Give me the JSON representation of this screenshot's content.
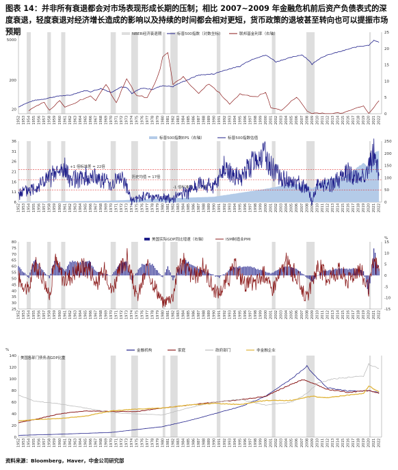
{
  "figure": {
    "title": "图表 14：并非所有衰退都会对市场表现形成长期的压制；相比 2007~2009 年金融危机前后资产负债表式的深度衰退，轻度衰退对经济增长造成的影响以及持续的时间都会相对更短，货币政策的退坡甚至转向也可以提振市场预期",
    "source": "资料来源：Bloomberg，Haver，中金公司研究部"
  },
  "colors": {
    "navy": "#1f1f8a",
    "darkred": "#8b1a1a",
    "gray": "#bdbdbd",
    "gold": "#e0b43a",
    "lightblue": "#b4cbe8",
    "recession": "#dedede",
    "redline": "#e03030"
  },
  "chart_data": [
    {
      "type": "line",
      "id": "p1",
      "legend": [
        "NBER经济衰退期",
        "标普500指数（对数坐标）",
        "联邦基金利率（右轴）"
      ],
      "y_ticks": [
        "5000",
        "200",
        "20"
      ],
      "y2_ticks": [
        "25",
        "20",
        "15",
        "10",
        "5",
        "0"
      ],
      "x_ticks": [
        "1952",
        "1953",
        "1954",
        "1955",
        "1956",
        "1957",
        "1958",
        "1959",
        "1960",
        "1961",
        "1962",
        "1963",
        "1964",
        "1965",
        "1966",
        "1967",
        "1968",
        "1969",
        "1970",
        "1971",
        "1972",
        "1973",
        "1974",
        "1975",
        "1976",
        "1977",
        "1978",
        "1979",
        "1980",
        "1981",
        "1982",
        "1983",
        "1984",
        "1985",
        "1986",
        "1987",
        "1988",
        "1989",
        "1990",
        "1991",
        "1992",
        "1993",
        "1994",
        "1995",
        "1996",
        "1997",
        "1998",
        "1999",
        "2000",
        "2001",
        "2002",
        "2003",
        "2004",
        "2005",
        "2006",
        "2007",
        "2008",
        "2009",
        "2010",
        "2011",
        "2012",
        "2013",
        "2014",
        "2015",
        "2016",
        "2017",
        "2018",
        "2019",
        "2020",
        "2021",
        "2022"
      ],
      "recessions": [
        [
          1953.6,
          1954.4
        ],
        [
          1957.6,
          1958.3
        ],
        [
          1960.3,
          1961.1
        ],
        [
          1969.9,
          1970.9
        ],
        [
          1973.9,
          1975.2
        ],
        [
          1980.0,
          1980.5
        ],
        [
          1981.5,
          1982.9
        ],
        [
          1990.5,
          1991.2
        ],
        [
          2001.2,
          2001.9
        ],
        [
          2007.9,
          2009.5
        ],
        [
          2020.1,
          2020.4
        ]
      ],
      "series": [
        {
          "name": "标普500指数（对数坐标）",
          "x": [
            1952,
            1955,
            1957,
            1960,
            1962,
            1965,
            1966,
            1968,
            1970,
            1972,
            1973,
            1974,
            1976,
            1978,
            1980,
            1982,
            1985,
            1987,
            1990,
            1995,
            1998,
            2000,
            2002,
            2005,
            2007,
            2009,
            2011,
            2015,
            2018,
            2020,
            2021,
            2022
          ],
          "y": [
            24,
            40,
            45,
            58,
            60,
            88,
            80,
            103,
            75,
            118,
            110,
            68,
            107,
            96,
            130,
            120,
            210,
            300,
            330,
            600,
            1150,
            1450,
            850,
            1220,
            1500,
            700,
            1260,
            2050,
            2900,
            3200,
            4700,
            4000
          ]
        },
        {
          "name": "联邦基金利率（右轴）",
          "x": [
            1954,
            1955,
            1957,
            1958,
            1960,
            1961,
            1966,
            1967,
            1969,
            1970,
            1971,
            1973,
            1975,
            1977,
            1979,
            1980,
            1981,
            1982,
            1984,
            1987,
            1989,
            1990,
            1993,
            1995,
            1998,
            2000,
            2001,
            2003,
            2006,
            2008,
            2009,
            2015,
            2019,
            2020,
            2022
          ],
          "y": [
            1,
            2,
            3.5,
            1,
            4,
            2,
            5.5,
            4,
            9,
            6,
            3.5,
            10.5,
            5.5,
            5,
            11,
            17,
            19,
            9,
            11,
            6.5,
            9.5,
            8,
            3,
            6,
            5,
            6.5,
            2,
            1,
            5.25,
            1,
            0.1,
            0.25,
            2.4,
            0.1,
            4
          ]
        }
      ]
    },
    {
      "type": "line",
      "id": "p2",
      "legend": [
        "标普500指数EPS（右轴）",
        "标普500指数估值"
      ],
      "y_ticks": [
        "36",
        "31",
        "26",
        "21",
        "16",
        "11",
        "6"
      ],
      "y2_ticks": [
        "250",
        "200",
        "150",
        "100",
        "50",
        "0"
      ],
      "ref_lines": [
        {
          "label": "+1 倍标准差 = 22倍",
          "value": 22
        },
        {
          "label": "历史均值 = 17倍",
          "value": 17
        },
        {
          "label": "-1 倍标准差 = 12倍",
          "value": 12
        }
      ],
      "series": [
        {
          "name": "标普500指数估值",
          "x": [
            1952,
            1955,
            1958,
            1961,
            1962,
            1965,
            1968,
            1970,
            1972,
            1974,
            1977,
            1980,
            1982,
            1985,
            1987,
            1990,
            1992,
            1995,
            1998,
            2000,
            2002,
            2005,
            2008,
            2009,
            2010,
            2013,
            2016,
            2018,
            2020,
            2021,
            2022
          ],
          "y": [
            10,
            13,
            18,
            22,
            17,
            18,
            18,
            15,
            19,
            7,
            9,
            8,
            8,
            11,
            15,
            14,
            23,
            17,
            28,
            29,
            20,
            16,
            13,
            6,
            14,
            15,
            21,
            17,
            22,
            31,
            19
          ]
        },
        {
          "name": "标普500指数EPS（右轴）",
          "x": [
            1952,
            1960,
            1970,
            1980,
            1990,
            2000,
            2005,
            2008,
            2009,
            2012,
            2015,
            2019,
            2020,
            2021,
            2022
          ],
          "y": [
            2,
            3,
            6,
            15,
            22,
            54,
            75,
            70,
            55,
            96,
            100,
            160,
            140,
            200,
            210
          ]
        }
      ]
    },
    {
      "type": "bar",
      "id": "p3",
      "legend": [
        "美国实际GDP同比增速（右轴）",
        "ISM制造业PMI"
      ],
      "y_ticks": [
        "80",
        "75",
        "70",
        "65",
        "60",
        "55",
        "50",
        "45",
        "40",
        "35",
        "30",
        "25"
      ],
      "y2_ticks": [
        "15",
        "10",
        "5",
        "0",
        "-5",
        "-10",
        "-15"
      ],
      "y2_label": "%",
      "series": [
        {
          "name": "ISM制造业PMI",
          "x": [
            1952,
            1954,
            1955,
            1957,
            1958,
            1959,
            1961,
            1964,
            1966,
            1967,
            1969,
            1970,
            1972,
            1973,
            1975,
            1977,
            1980,
            1982,
            1983,
            1984,
            1986,
            1988,
            1990,
            1991,
            1994,
            1996,
            1998,
            2000,
            2001,
            2004,
            2006,
            2008,
            2010,
            2012,
            2014,
            2016,
            2018,
            2020,
            2021,
            2022
          ],
          "y": [
            50,
            40,
            62,
            50,
            34,
            65,
            48,
            60,
            58,
            45,
            58,
            40,
            58,
            67,
            34,
            58,
            30,
            36,
            60,
            63,
            50,
            60,
            40,
            38,
            59,
            46,
            46,
            55,
            40,
            62,
            52,
            33,
            60,
            51,
            57,
            48,
            60,
            41,
            64,
            56
          ]
        },
        {
          "name": "美国实际GDP同比增速（右轴）",
          "x": [
            1952,
            1954,
            1955,
            1958,
            1959,
            1961,
            1962,
            1966,
            1967,
            1970,
            1972,
            1973,
            1974,
            1976,
            1978,
            1980,
            1981,
            1982,
            1984,
            1987,
            1991,
            1994,
            1997,
            2001,
            2004,
            2006,
            2009,
            2011,
            2015,
            2018,
            2019,
            2020,
            2021,
            2022
          ],
          "y": [
            4,
            -1,
            7,
            -1,
            7,
            2,
            6,
            6,
            2,
            0,
            6,
            6,
            -2,
            5,
            5,
            -1,
            4,
            -2,
            7,
            3,
            -1,
            4,
            4,
            1,
            4,
            3,
            -3,
            2,
            3,
            3,
            2,
            -9,
            12,
            3
          ]
        }
      ]
    },
    {
      "type": "line",
      "id": "p4",
      "title": "美国各部门债务占GDP比重",
      "legend": [
        "金融机构",
        "家庭",
        "政府部门",
        "非金融企业"
      ],
      "y_ticks": [
        "140",
        "120",
        "100",
        "80",
        "60",
        "40",
        "20",
        "0"
      ],
      "y_label": "%",
      "series": [
        {
          "name": "金融机构",
          "x": [
            1952,
            1960,
            1970,
            1980,
            1985,
            1990,
            1995,
            2000,
            2005,
            2008,
            2009,
            2012,
            2016,
            2020,
            2022
          ],
          "y": [
            3,
            5,
            8,
            18,
            28,
            40,
            52,
            70,
            100,
            122,
            110,
            85,
            79,
            80,
            76
          ]
        },
        {
          "name": "家庭",
          "x": [
            1952,
            1955,
            1960,
            1965,
            1970,
            1975,
            1980,
            1985,
            1990,
            1995,
            2000,
            2003,
            2007,
            2008,
            2012,
            2016,
            2020,
            2022
          ],
          "y": [
            25,
            30,
            40,
            45,
            44,
            44,
            50,
            55,
            60,
            64,
            70,
            83,
            98,
            97,
            82,
            77,
            80,
            75
          ]
        },
        {
          "name": "政府部门",
          "x": [
            1952,
            1955,
            1960,
            1965,
            1970,
            1975,
            1980,
            1985,
            1990,
            1995,
            2000,
            2005,
            2008,
            2010,
            2013,
            2019,
            2020,
            2022
          ],
          "y": [
            72,
            62,
            57,
            50,
            42,
            40,
            38,
            50,
            60,
            65,
            55,
            60,
            75,
            92,
            100,
            105,
            125,
            118
          ]
        },
        {
          "name": "非金融企业",
          "x": [
            1952,
            1955,
            1960,
            1965,
            1970,
            1975,
            1980,
            1985,
            1990,
            1995,
            2000,
            2005,
            2009,
            2012,
            2016,
            2019,
            2020,
            2022
          ],
          "y": [
            28,
            30,
            32,
            36,
            45,
            48,
            50,
            55,
            58,
            56,
            63,
            63,
            70,
            68,
            72,
            75,
            88,
            78
          ]
        }
      ]
    }
  ]
}
